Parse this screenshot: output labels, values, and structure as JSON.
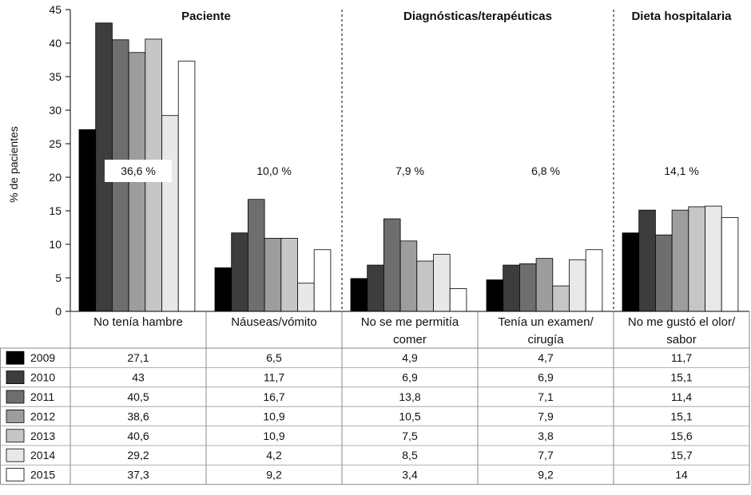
{
  "chart_data": {
    "type": "bar",
    "ylabel": "% de pacientes",
    "ylim": [
      0,
      45
    ],
    "yticks": [
      0,
      5,
      10,
      15,
      20,
      25,
      30,
      35,
      40,
      45
    ],
    "sections": [
      {
        "title": "Paciente",
        "categories": [
          0,
          1
        ]
      },
      {
        "title": "Diagnósticas/terapéuticas",
        "categories": [
          2,
          3
        ]
      },
      {
        "title": "Dieta hospitalaria",
        "categories": [
          4
        ]
      }
    ],
    "categories": [
      {
        "label_lines": [
          "No tenía hambre"
        ],
        "total_label": "36,6 %"
      },
      {
        "label_lines": [
          "Náuseas/vómito"
        ],
        "total_label": "10,0 %"
      },
      {
        "label_lines": [
          "No se me permitía",
          "comer"
        ],
        "total_label": "7,9 %"
      },
      {
        "label_lines": [
          "Tenía un examen/",
          "cirugía"
        ],
        "total_label": "6,8 %"
      },
      {
        "label_lines": [
          "No me gustó el olor/",
          "sabor"
        ],
        "total_label": "14,1 %"
      }
    ],
    "series": [
      {
        "name": "2009",
        "color": "#000000",
        "values": [
          27.1,
          6.5,
          4.9,
          4.7,
          11.7
        ],
        "display": [
          "27,1",
          "6,5",
          "4,9",
          "4,7",
          "11,7"
        ]
      },
      {
        "name": "2010",
        "color": "#3d3d3d",
        "values": [
          43,
          11.7,
          6.9,
          6.9,
          15.1
        ],
        "display": [
          "43",
          "11,7",
          "6,9",
          "6,9",
          "15,1"
        ]
      },
      {
        "name": "2011",
        "color": "#6e6e6e",
        "values": [
          40.5,
          16.7,
          13.8,
          7.1,
          11.4
        ],
        "display": [
          "40,5",
          "16,7",
          "13,8",
          "7,1",
          "11,4"
        ]
      },
      {
        "name": "2012",
        "color": "#9d9d9d",
        "values": [
          38.6,
          10.9,
          10.5,
          7.9,
          15.1
        ],
        "display": [
          "38,6",
          "10,9",
          "10,5",
          "7,9",
          "15,1"
        ]
      },
      {
        "name": "2013",
        "color": "#c6c6c6",
        "values": [
          40.6,
          10.9,
          7.5,
          3.8,
          15.6
        ],
        "display": [
          "40,6",
          "10,9",
          "7,5",
          "3,8",
          "15,6"
        ]
      },
      {
        "name": "2014",
        "color": "#e8e8e8",
        "values": [
          29.2,
          4.2,
          8.5,
          7.7,
          15.7
        ],
        "display": [
          "29,2",
          "4,2",
          "8,5",
          "7,7",
          "15,7"
        ]
      },
      {
        "name": "2015",
        "color": "#ffffff",
        "values": [
          37.3,
          9.2,
          3.4,
          9.2,
          14
        ],
        "display": [
          "37,3",
          "9,2",
          "3,4",
          "9,2",
          "14"
        ]
      }
    ],
    "legend_placement": "table-left",
    "grid": false
  }
}
